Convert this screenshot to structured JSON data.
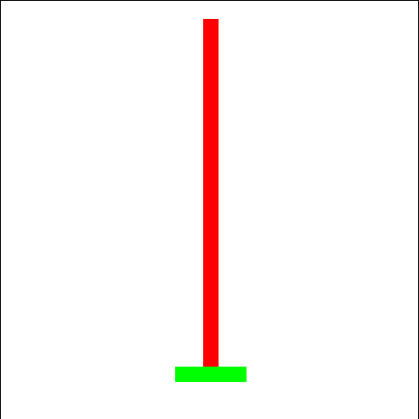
{
  "scene": {
    "environment": "cartpole",
    "colors": {
      "background": "#ffffff",
      "border": "#000000",
      "pole": "#ff0000",
      "cart": "#00ff00"
    }
  }
}
